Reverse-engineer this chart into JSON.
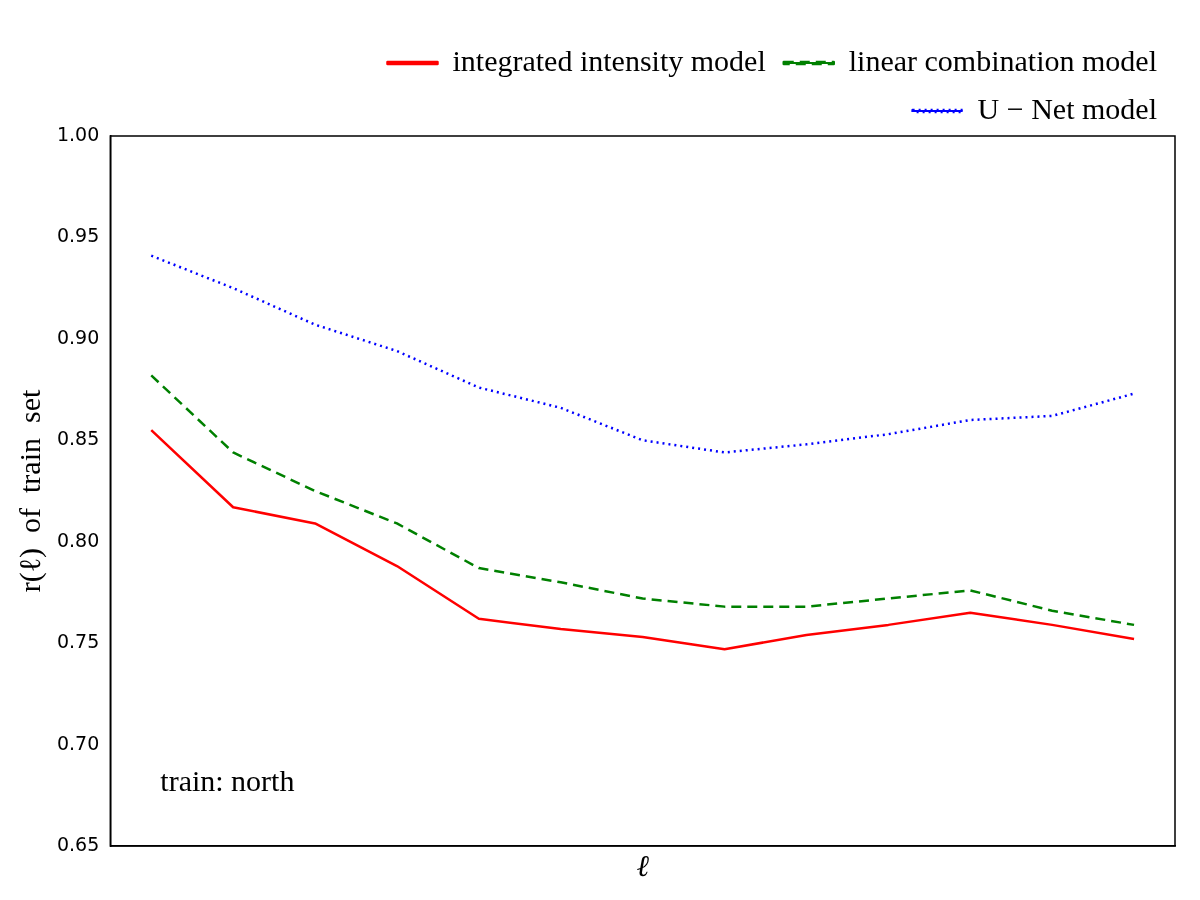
{
  "chart_data": {
    "type": "line",
    "xlabel": "ℓ",
    "ylabel": "r(ℓ)  of  train  set",
    "annotations": [
      "train: north"
    ],
    "categories": [
      null,
      null,
      null,
      null,
      null,
      null,
      null,
      null,
      null,
      null,
      null,
      null,
      null
    ],
    "series": [
      {
        "name": "integrated intensity model",
        "color": "#ff0000",
        "line_style": "solid",
        "values": [
          0.855,
          0.817,
          0.809,
          0.788,
          0.762,
          0.757,
          0.753,
          0.747,
          0.754,
          0.759,
          0.765,
          0.759,
          0.752
        ]
      },
      {
        "name": "linear combination model",
        "color": "#008000",
        "line_style": "dashed",
        "values": [
          0.882,
          0.844,
          0.825,
          0.809,
          0.787,
          0.78,
          0.772,
          0.768,
          0.768,
          0.772,
          0.776,
          0.766,
          0.759
        ]
      },
      {
        "name": "U − Net model",
        "color": "#0000ff",
        "line_style": "dotted",
        "values": [
          0.941,
          0.925,
          0.907,
          0.894,
          0.876,
          0.866,
          0.85,
          0.844,
          0.848,
          0.853,
          0.86,
          0.862,
          0.873
        ]
      }
    ],
    "ylim": [
      0.65,
      1.0
    ],
    "yticks": [
      {
        "value": 0.65,
        "label": "0.65"
      },
      {
        "value": 0.7,
        "label": "0.70"
      },
      {
        "value": 0.75,
        "label": "0.75"
      },
      {
        "value": 0.8,
        "label": "0.80"
      },
      {
        "value": 0.85,
        "label": "0.85"
      },
      {
        "value": 0.9,
        "label": "0.90"
      },
      {
        "value": 0.95,
        "label": "0.95"
      },
      {
        "value": 1.0,
        "label": "1.00"
      }
    ],
    "tick_labels": "y",
    "grid": false,
    "legend": "top right",
    "marker": "none"
  }
}
